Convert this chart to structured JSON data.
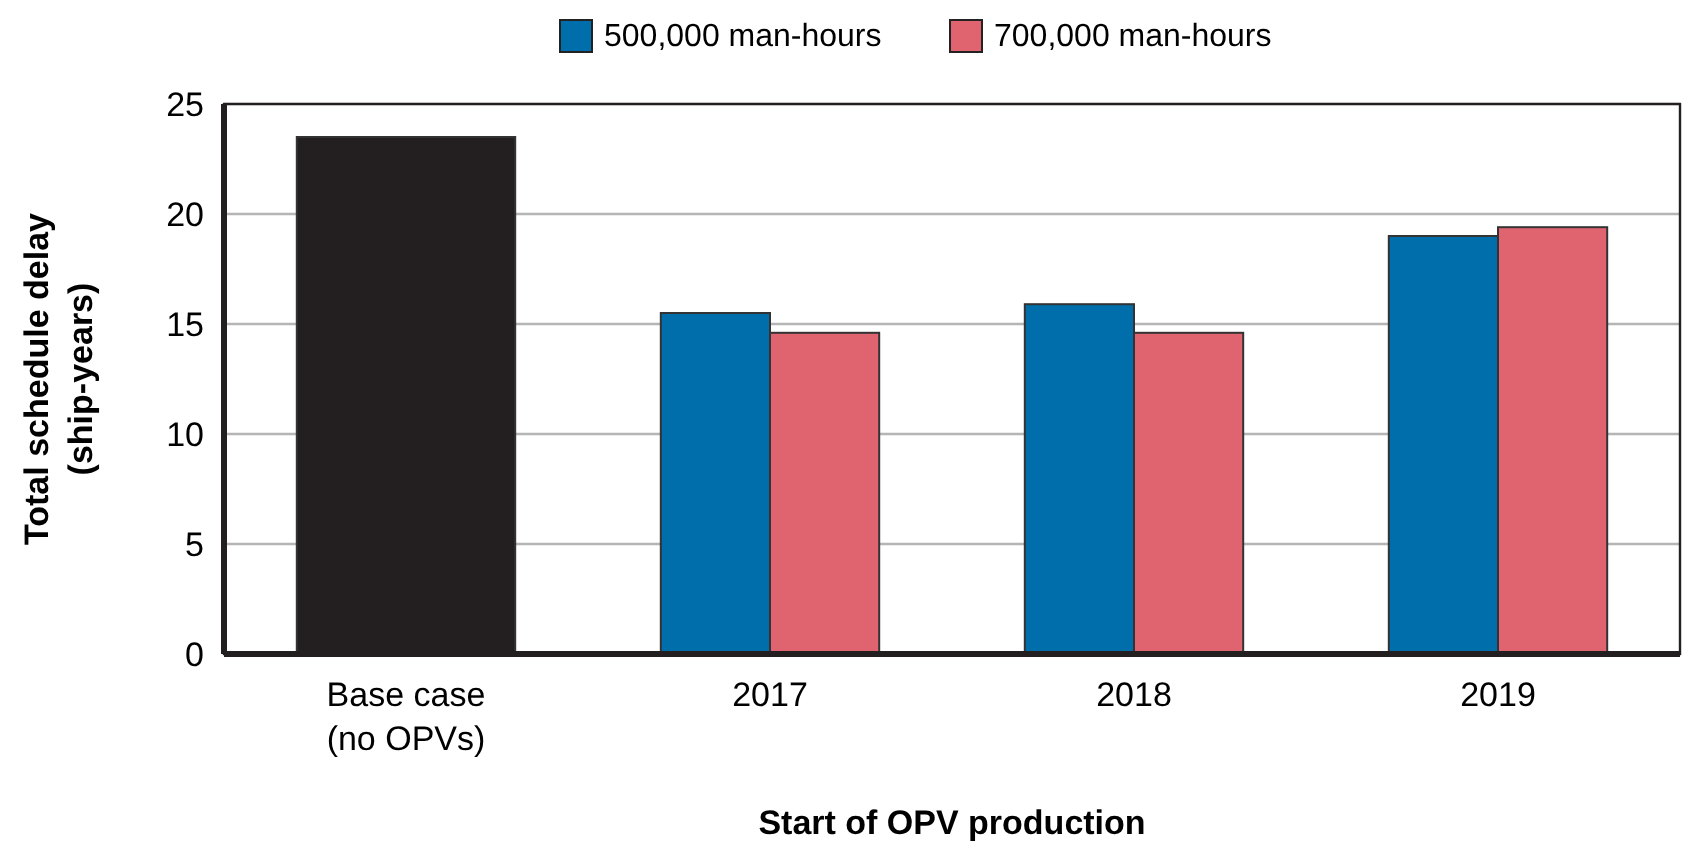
{
  "chart_data": {
    "type": "bar",
    "xlabel": "Start of OPV production",
    "ylabel": "Total schedule delay\n(ship-years)",
    "categories": [
      "Base case\n(no OPVs)",
      "2017",
      "2018",
      "2019"
    ],
    "series": [
      {
        "color": "#231f20",
        "values": [
          23.5,
          null,
          null,
          null
        ]
      },
      {
        "name": "500,000 man-hours",
        "color": "#006eaa",
        "values": [
          null,
          15.5,
          15.9,
          19.0
        ]
      },
      {
        "name": "700,000 man-hours",
        "color": "#e06470",
        "values": [
          null,
          14.6,
          14.6,
          19.4
        ]
      }
    ],
    "ylim": [
      0,
      25
    ],
    "yticks": [
      0,
      5,
      10,
      15,
      20,
      25
    ],
    "grid": "y",
    "legend": "top"
  }
}
